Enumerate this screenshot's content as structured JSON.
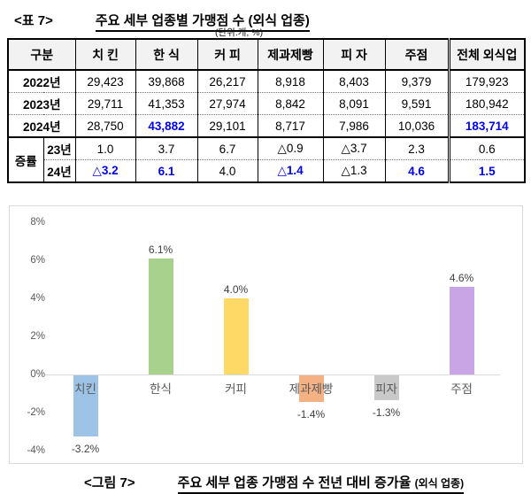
{
  "accent_blue": "#0000f0",
  "table_caption": {
    "tag": "<표 7>",
    "title": "주요 세부 업종별 가맹점 수 (외식 업종)",
    "unit_note": "(단위:개, %)"
  },
  "table": {
    "headers": [
      "구분",
      "치 킨",
      "한 식",
      "커 피",
      "제과제빵",
      "피 자",
      "주점",
      "전체 외식업"
    ],
    "rows": [
      {
        "label": "2022년",
        "values": [
          "29,423",
          "39,868",
          "26,217",
          "8,918",
          "8,403",
          "9,379",
          "179,923"
        ],
        "highlight": []
      },
      {
        "label": "2023년",
        "values": [
          "29,711",
          "41,353",
          "27,974",
          "8,842",
          "8,091",
          "9,591",
          "180,942"
        ],
        "highlight": []
      },
      {
        "label": "2024년",
        "values": [
          "28,750",
          "43,882",
          "29,101",
          "8,717",
          "7,986",
          "10,036",
          "183,714"
        ],
        "highlight": [
          1,
          6
        ]
      }
    ],
    "rate_label": "증률",
    "rate_rows": [
      {
        "label": "23년",
        "values": [
          "1.0",
          "3.7",
          "6.7",
          "△0.9",
          "△3.7",
          "2.3",
          "0.6"
        ],
        "highlight": []
      },
      {
        "label": "24년",
        "values": [
          "△3.2",
          "6.1",
          "4.0",
          "△1.4",
          "△1.3",
          "4.6",
          "1.5"
        ],
        "highlight": [
          0,
          1,
          3,
          5,
          6
        ]
      }
    ]
  },
  "chart_data": {
    "type": "bar",
    "title": "",
    "xlabel": "",
    "ylabel": "",
    "categories": [
      "치킨",
      "한식",
      "커피",
      "제과제빵",
      "피자",
      "주점"
    ],
    "values": [
      -3.2,
      6.1,
      4.0,
      -1.4,
      -1.3,
      4.6
    ],
    "value_labels": [
      "-3.2%",
      "6.1%",
      "4.0%",
      "-1.4%",
      "-1.3%",
      "4.6%"
    ],
    "bar_colors": [
      "#9DC3E6",
      "#A9D18E",
      "#FFD966",
      "#F4B183",
      "#C9C9C9",
      "#C9A5E5"
    ],
    "ylim": [
      -4,
      8
    ],
    "ytick_values": [
      8,
      6,
      4,
      2,
      0,
      -2,
      -4
    ],
    "ytick_labels": [
      "8%",
      "6%",
      "4%",
      "2%",
      "0%",
      "-2%",
      "-4%"
    ],
    "grid": false,
    "legend_position": "none",
    "axis_color": "#d9d9d9",
    "text_color": "#595959"
  },
  "figure_caption": {
    "tag": "<그림 7>",
    "title": "주요 세부 업종 가맹점 수 전년 대비 증가율",
    "suffix": "(외식 업종)"
  }
}
